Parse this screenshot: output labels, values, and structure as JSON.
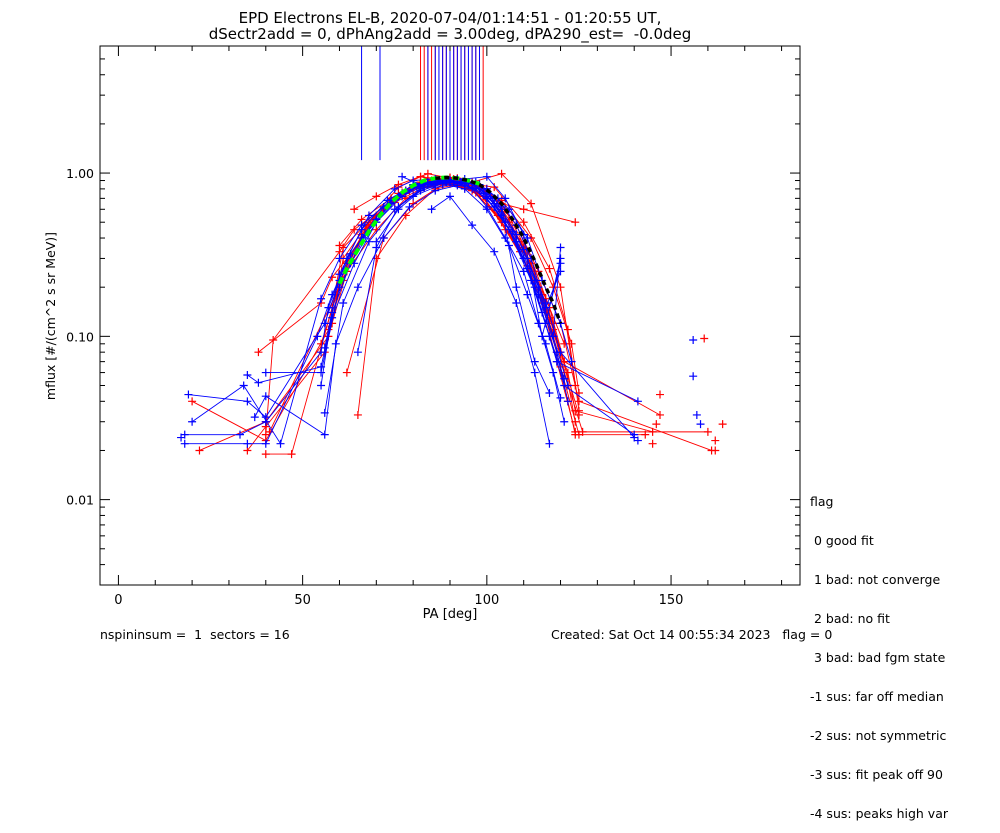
{
  "chart_data": {
    "type": "scatter",
    "title_lines": [
      "EPD Electrons EL-B, 2020-07-04/01:14:51 - 01:20:55 UT,",
      "dSectr2add = 0, dPhAng2add = 3.00deg, dPA290_est=  -0.0deg"
    ],
    "xlabel": "PA [deg]",
    "ylabel": "mflux [#/(cm^2 s sr MeV)]",
    "xlim": [
      -5,
      185
    ],
    "ylim": [
      0.003,
      6.0
    ],
    "y_scale": "log",
    "x_ticks": [
      {
        "v": 0,
        "label": "0"
      },
      {
        "v": 50,
        "label": "50"
      },
      {
        "v": 100,
        "label": "100"
      },
      {
        "v": 150,
        "label": "150"
      }
    ],
    "y_ticks": [
      {
        "v": 0.01,
        "label": "0.01"
      },
      {
        "v": 0.1,
        "label": "0.10"
      },
      {
        "v": 1.0,
        "label": "1.00"
      }
    ],
    "colors": {
      "red": "#ff0000",
      "blue": "#0000ff",
      "green": "#00ff00",
      "black": "#000000"
    },
    "spike_lines": {
      "y_bottom": 1.2,
      "blue_x": [
        66,
        71,
        84,
        86,
        87,
        88,
        89,
        90,
        91,
        92,
        93,
        94,
        95,
        96,
        97,
        98
      ],
      "red_x": [
        82,
        83,
        84,
        85,
        86,
        88,
        89,
        91,
        92,
        93,
        94,
        96,
        97,
        99
      ]
    },
    "series": [
      {
        "color": "red",
        "x": [
          20,
          40,
          58,
          61,
          68,
          76,
          82,
          91,
          97,
          103,
          109,
          115,
          119,
          122,
          124,
          143
        ],
        "y": [
          0.04,
          0.023,
          0.12,
          0.3,
          0.5,
          0.82,
          0.95,
          0.9,
          0.8,
          0.55,
          0.38,
          0.18,
          0.08,
          0.04,
          0.025,
          0.025
        ]
      },
      {
        "color": "red",
        "x": [
          22,
          40,
          57,
          62,
          70,
          78,
          86,
          92,
          99,
          106,
          112,
          117,
          121,
          124
        ],
        "y": [
          0.02,
          0.03,
          0.1,
          0.25,
          0.45,
          0.7,
          0.85,
          0.9,
          0.78,
          0.5,
          0.3,
          0.15,
          0.07,
          0.03
        ]
      },
      {
        "color": "red",
        "x": [
          35,
          40,
          56,
          60,
          66,
          74,
          82,
          90,
          98,
          104,
          110,
          116,
          120,
          125
        ],
        "y": [
          0.02,
          0.028,
          0.08,
          0.2,
          0.42,
          0.7,
          0.88,
          0.9,
          0.75,
          0.5,
          0.3,
          0.14,
          0.065,
          0.025
        ]
      },
      {
        "color": "red",
        "x": [
          40,
          42,
          60,
          64,
          72,
          80,
          88,
          94,
          100,
          107,
          113,
          118,
          122
        ],
        "y": [
          0.025,
          0.095,
          0.33,
          0.45,
          0.62,
          0.8,
          0.86,
          0.82,
          0.7,
          0.42,
          0.25,
          0.11,
          0.05
        ]
      },
      {
        "color": "red",
        "x": [
          38,
          55,
          58,
          63,
          70,
          78,
          85,
          92,
          99,
          105,
          111,
          117,
          120,
          125
        ],
        "y": [
          0.08,
          0.16,
          0.23,
          0.32,
          0.55,
          0.78,
          0.9,
          0.88,
          0.72,
          0.45,
          0.27,
          0.13,
          0.08,
          0.033
        ]
      },
      {
        "color": "red",
        "x": [
          40,
          47,
          58,
          61,
          67,
          75,
          83,
          90,
          97,
          104,
          111,
          116,
          121,
          147
        ],
        "y": [
          0.019,
          0.019,
          0.15,
          0.35,
          0.48,
          0.66,
          0.82,
          0.86,
          0.76,
          0.5,
          0.3,
          0.16,
          0.07,
          0.033
        ]
      },
      {
        "color": "red",
        "x": [
          41,
          59,
          62,
          68,
          76,
          84,
          91,
          98,
          105,
          112,
          117,
          122,
          124,
          145
        ],
        "y": [
          0.026,
          0.18,
          0.28,
          0.5,
          0.75,
          0.85,
          0.92,
          0.85,
          0.6,
          0.3,
          0.12,
          0.06,
          0.035,
          0.026
        ]
      },
      {
        "color": "red",
        "x": [
          55,
          62,
          70,
          78,
          85,
          92,
          100,
          106,
          112,
          118,
          121,
          126
        ],
        "y": [
          0.09,
          0.28,
          0.55,
          0.75,
          0.9,
          0.93,
          0.8,
          0.52,
          0.28,
          0.12,
          0.06,
          0.026
        ]
      },
      {
        "color": "red",
        "x": [
          57,
          61,
          68,
          77,
          84,
          90,
          96,
          103,
          109,
          115,
          119,
          124,
          160
        ],
        "y": [
          0.11,
          0.22,
          0.5,
          0.76,
          0.88,
          0.88,
          0.78,
          0.55,
          0.33,
          0.16,
          0.07,
          0.026,
          0.026
        ]
      },
      {
        "color": "red",
        "x": [
          60,
          66,
          74,
          82,
          90,
          97,
          104,
          110,
          116,
          121
        ],
        "y": [
          0.36,
          0.52,
          0.7,
          0.82,
          0.88,
          0.85,
          0.58,
          0.35,
          0.17,
          0.09
        ]
      },
      {
        "color": "red",
        "x": [
          64,
          70,
          76,
          84,
          90,
          96,
          104,
          112,
          120,
          124
        ],
        "y": [
          0.6,
          0.72,
          0.85,
          0.99,
          0.93,
          0.88,
          0.99,
          0.65,
          0.2,
          0.05
        ]
      },
      {
        "color": "red",
        "x": [
          65,
          70,
          78,
          86,
          94,
          102,
          110,
          117,
          122,
          125
        ],
        "y": [
          0.033,
          0.3,
          0.55,
          0.8,
          0.87,
          0.82,
          0.5,
          0.26,
          0.11,
          0.035
        ]
      },
      {
        "color": "red",
        "x": [
          62,
          72,
          80,
          88,
          96,
          104,
          112,
          118,
          123,
          125
        ],
        "y": [
          0.06,
          0.4,
          0.65,
          0.85,
          0.84,
          0.68,
          0.4,
          0.2,
          0.09,
          0.045
        ]
      },
      {
        "color": "red",
        "x": [
          79,
          84,
          90,
          98,
          104,
          110,
          124
        ],
        "y": [
          0.78,
          0.92,
          0.94,
          0.82,
          0.65,
          0.6,
          0.5
        ]
      },
      {
        "color": "red",
        "x": [
          82,
          86,
          92,
          100,
          108,
          114,
          120,
          125,
          161
        ],
        "y": [
          0.95,
          0.9,
          0.92,
          0.8,
          0.48,
          0.25,
          0.12,
          0.04,
          0.02
        ]
      },
      {
        "color": "blue",
        "x": [
          18,
          33,
          40,
          55,
          57,
          62,
          68,
          75,
          80,
          86,
          91,
          96,
          100,
          105,
          110,
          114,
          118,
          121
        ],
        "y": [
          0.025,
          0.025,
          0.03,
          0.08,
          0.15,
          0.3,
          0.55,
          0.8,
          0.9,
          0.92,
          0.88,
          0.8,
          0.62,
          0.4,
          0.25,
          0.12,
          0.06,
          0.03
        ]
      },
      {
        "color": "blue",
        "x": [
          19,
          35,
          40,
          56,
          60,
          66,
          72,
          78,
          84,
          90,
          96,
          102,
          108,
          113,
          117,
          121,
          140
        ],
        "y": [
          0.044,
          0.04,
          0.032,
          0.12,
          0.22,
          0.4,
          0.62,
          0.78,
          0.86,
          0.88,
          0.82,
          0.62,
          0.38,
          0.2,
          0.1,
          0.05,
          0.025
        ]
      },
      {
        "color": "blue",
        "x": [
          18,
          35,
          40,
          54,
          58,
          63,
          70,
          76,
          82,
          88,
          94,
          100,
          106,
          111,
          116,
          120
        ],
        "y": [
          0.022,
          0.022,
          0.022,
          0.1,
          0.18,
          0.32,
          0.52,
          0.72,
          0.84,
          0.86,
          0.8,
          0.6,
          0.36,
          0.18,
          0.09,
          0.042
        ]
      },
      {
        "color": "blue",
        "x": [
          20,
          34,
          44,
          55,
          60,
          66,
          74,
          80,
          86,
          92,
          98,
          104,
          110,
          115,
          119,
          141
        ],
        "y": [
          0.03,
          0.05,
          0.022,
          0.17,
          0.3,
          0.48,
          0.68,
          0.85,
          0.9,
          0.92,
          0.85,
          0.55,
          0.3,
          0.14,
          0.07,
          0.04
        ]
      },
      {
        "color": "blue",
        "x": [
          35,
          38,
          55,
          58,
          64,
          70,
          77,
          84,
          90,
          96,
          102,
          108,
          114,
          118,
          122
        ],
        "y": [
          0.058,
          0.052,
          0.065,
          0.13,
          0.28,
          0.5,
          0.75,
          0.88,
          0.9,
          0.86,
          0.7,
          0.42,
          0.2,
          0.1,
          0.05
        ]
      },
      {
        "color": "blue",
        "x": [
          37,
          40,
          56,
          59,
          65,
          72,
          79,
          86,
          92,
          98,
          104,
          110,
          116,
          120,
          140
        ],
        "y": [
          0.032,
          0.043,
          0.025,
          0.09,
          0.2,
          0.4,
          0.62,
          0.78,
          0.84,
          0.8,
          0.6,
          0.34,
          0.16,
          0.08,
          0.024
        ]
      },
      {
        "color": "blue",
        "x": [
          40,
          55,
          60,
          67,
          74,
          81,
          88,
          94,
          100,
          106,
          112,
          117,
          121
        ],
        "y": [
          0.06,
          0.06,
          0.2,
          0.42,
          0.65,
          0.82,
          0.88,
          0.86,
          0.7,
          0.45,
          0.22,
          0.1,
          0.055
        ]
      },
      {
        "color": "blue",
        "x": [
          55,
          58,
          63,
          70,
          77,
          84,
          90,
          96,
          102,
          108,
          114,
          119,
          122
        ],
        "y": [
          0.05,
          0.14,
          0.28,
          0.5,
          0.72,
          0.86,
          0.9,
          0.86,
          0.65,
          0.38,
          0.18,
          0.08,
          0.04
        ]
      },
      {
        "color": "blue",
        "x": [
          56,
          61,
          68,
          75,
          82,
          89,
          95,
          101,
          107,
          113,
          118,
          120
        ],
        "y": [
          0.034,
          0.16,
          0.38,
          0.6,
          0.8,
          0.88,
          0.88,
          0.72,
          0.44,
          0.22,
          0.1,
          0.35
        ]
      },
      {
        "color": "blue",
        "x": [
          56,
          60,
          66,
          73,
          80,
          87,
          93,
          99,
          105,
          111,
          116,
          120
        ],
        "y": [
          0.085,
          0.24,
          0.45,
          0.68,
          0.84,
          0.9,
          0.88,
          0.75,
          0.5,
          0.26,
          0.12,
          0.3
        ]
      },
      {
        "color": "blue",
        "x": [
          65,
          70,
          76,
          83,
          90,
          97,
          103,
          108,
          112,
          116,
          120
        ],
        "y": [
          0.08,
          0.35,
          0.62,
          0.82,
          0.9,
          0.88,
          0.7,
          0.48,
          0.3,
          0.15,
          0.25
        ]
      },
      {
        "color": "blue",
        "x": [
          70,
          76,
          82,
          88,
          94,
          100,
          106,
          111,
          115,
          120,
          123
        ],
        "y": [
          0.38,
          0.6,
          0.78,
          0.86,
          0.88,
          0.8,
          0.6,
          0.4,
          0.22,
          0.12,
          0.07
        ]
      },
      {
        "color": "blue",
        "x": [
          77,
          82,
          88,
          94,
          100,
          105,
          110,
          115,
          120
        ],
        "y": [
          0.95,
          0.85,
          0.9,
          0.92,
          0.95,
          0.7,
          0.42,
          0.1,
          0.28
        ]
      },
      {
        "color": "blue",
        "x": [
          80,
          86,
          92,
          98,
          104,
          108,
          113,
          117
        ],
        "y": [
          0.72,
          0.82,
          0.86,
          0.85,
          0.62,
          0.2,
          0.07,
          0.045
        ]
      },
      {
        "color": "blue",
        "x": [
          85,
          90,
          96,
          102,
          108,
          113,
          117
        ],
        "y": [
          0.6,
          0.72,
          0.48,
          0.33,
          0.16,
          0.06,
          0.022
        ]
      }
    ],
    "extra_points": [
      {
        "color": "blue",
        "x": 156,
        "y": 0.095
      },
      {
        "color": "red",
        "x": 159,
        "y": 0.097
      },
      {
        "color": "blue",
        "x": 156,
        "y": 0.057
      },
      {
        "color": "red",
        "x": 147,
        "y": 0.044
      },
      {
        "color": "blue",
        "x": 157,
        "y": 0.033
      },
      {
        "color": "blue",
        "x": 158,
        "y": 0.029
      },
      {
        "color": "red",
        "x": 164,
        "y": 0.029
      },
      {
        "color": "red",
        "x": 146,
        "y": 0.029
      },
      {
        "color": "red",
        "x": 162,
        "y": 0.023
      },
      {
        "color": "red",
        "x": 162,
        "y": 0.02
      },
      {
        "color": "blue",
        "x": 141,
        "y": 0.023
      },
      {
        "color": "blue",
        "x": 17,
        "y": 0.024
      },
      {
        "color": "red",
        "x": 145,
        "y": 0.022
      }
    ],
    "fit_green": {
      "x": [
        60,
        62,
        65,
        68,
        71,
        74,
        77,
        80,
        83,
        86,
        89,
        92,
        95,
        98
      ],
      "y": [
        0.21,
        0.26,
        0.34,
        0.44,
        0.55,
        0.66,
        0.76,
        0.84,
        0.9,
        0.93,
        0.94,
        0.93,
        0.9,
        0.86
      ]
    },
    "fit_black": {
      "x": [
        86,
        89,
        92,
        95,
        98,
        101,
        104,
        107,
        110,
        113,
        116,
        118,
        120
      ],
      "y": [
        0.93,
        0.94,
        0.93,
        0.9,
        0.85,
        0.76,
        0.65,
        0.52,
        0.4,
        0.29,
        0.2,
        0.16,
        0.12
      ]
    }
  },
  "legend": {
    "title": "flag",
    "items": [
      " 0 good fit",
      " 1 bad: not converge",
      " 2 bad: no fit",
      " 3 bad: bad fgm state",
      "-1 sus: far off median",
      "-2 sus: not symmetric",
      "-3 sus: fit peak off 90",
      "-4 sus: peaks high var"
    ]
  },
  "footer": {
    "left": "nspininsum =  1  sectors = 16",
    "right": "Created: Sat Oct 14 00:55:34 2023   flag = 0"
  }
}
